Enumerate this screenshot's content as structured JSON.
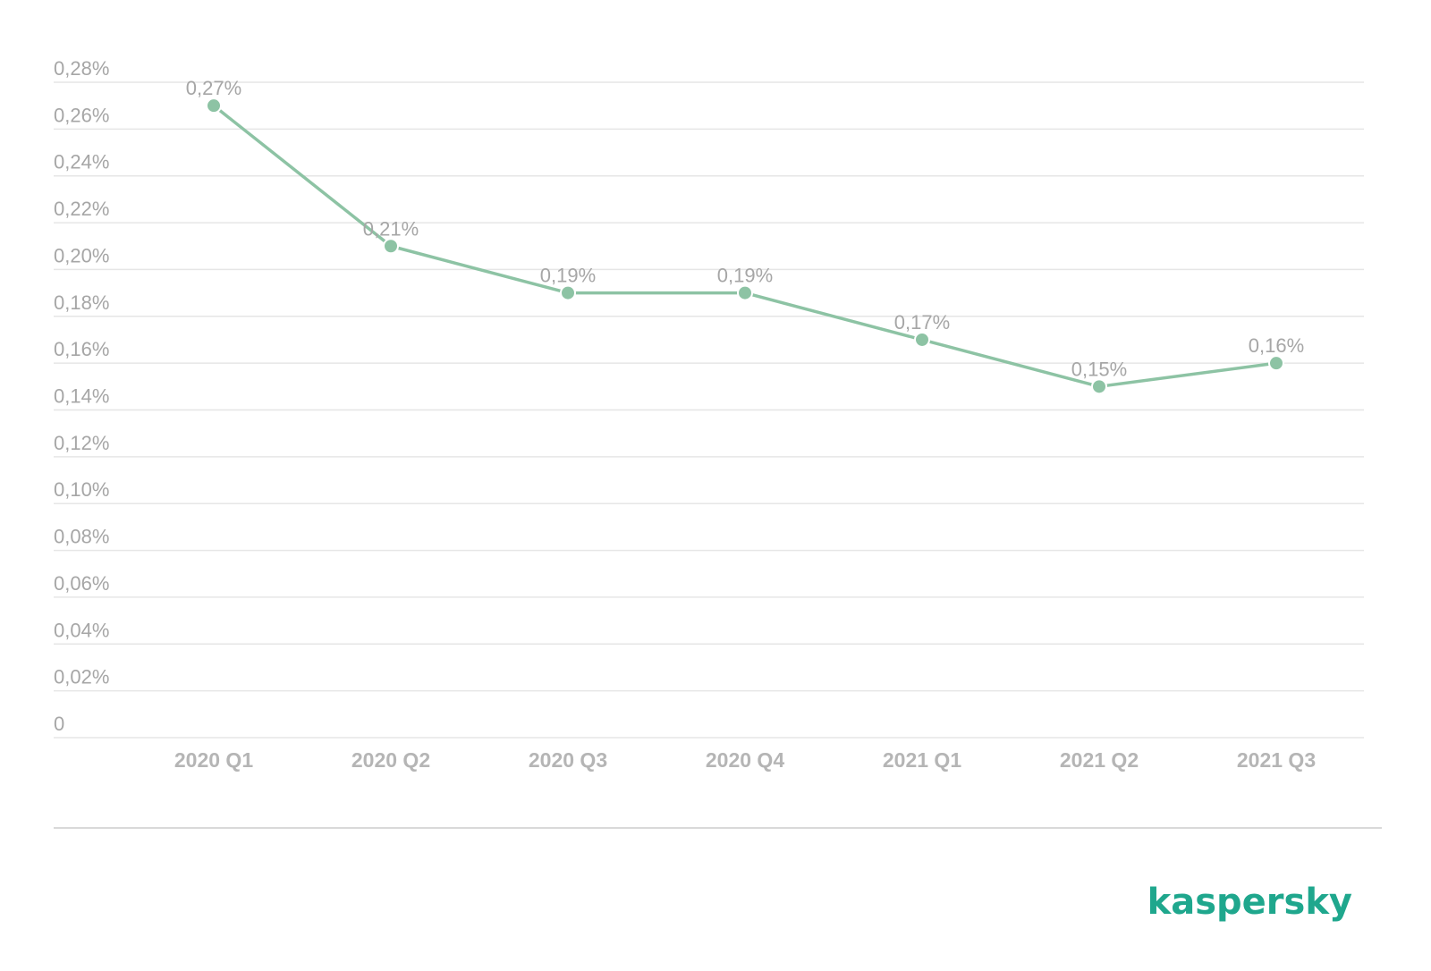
{
  "chart_data": {
    "type": "line",
    "categories": [
      "2020 Q1",
      "2020 Q2",
      "2020 Q3",
      "2020 Q4",
      "2021 Q1",
      "2021 Q2",
      "2021 Q3"
    ],
    "series": [
      {
        "values": [
          0.27,
          0.21,
          0.19,
          0.19,
          0.17,
          0.15,
          0.16
        ],
        "data_labels": [
          "0,27%",
          "0,21%",
          "0,19%",
          "0,19%",
          "0,17%",
          "0,15%",
          "0,16%"
        ],
        "color": "#8dc3a4"
      }
    ],
    "ylim": [
      0,
      0.28
    ],
    "y_ticks": [
      0,
      0.02,
      0.04,
      0.06,
      0.08,
      0.1,
      0.12,
      0.14,
      0.16,
      0.18,
      0.2,
      0.22,
      0.24,
      0.26,
      0.28
    ],
    "y_tick_labels": [
      "0",
      "0,02%",
      "0,04%",
      "0,06%",
      "0,08%",
      "0,10%",
      "0,12%",
      "0,14%",
      "0,16%",
      "0,18%",
      "0,20%",
      "0,22%",
      "0,24%",
      "0,26%",
      "0,28%"
    ],
    "grid": true,
    "legend": "none",
    "xlabel": "",
    "ylabel": ""
  },
  "branding": {
    "logo_text": "kaspersky",
    "logo_color": "#1fa78d"
  },
  "colors": {
    "text": "#a6a6a6",
    "grid": "#e6e6e6"
  }
}
